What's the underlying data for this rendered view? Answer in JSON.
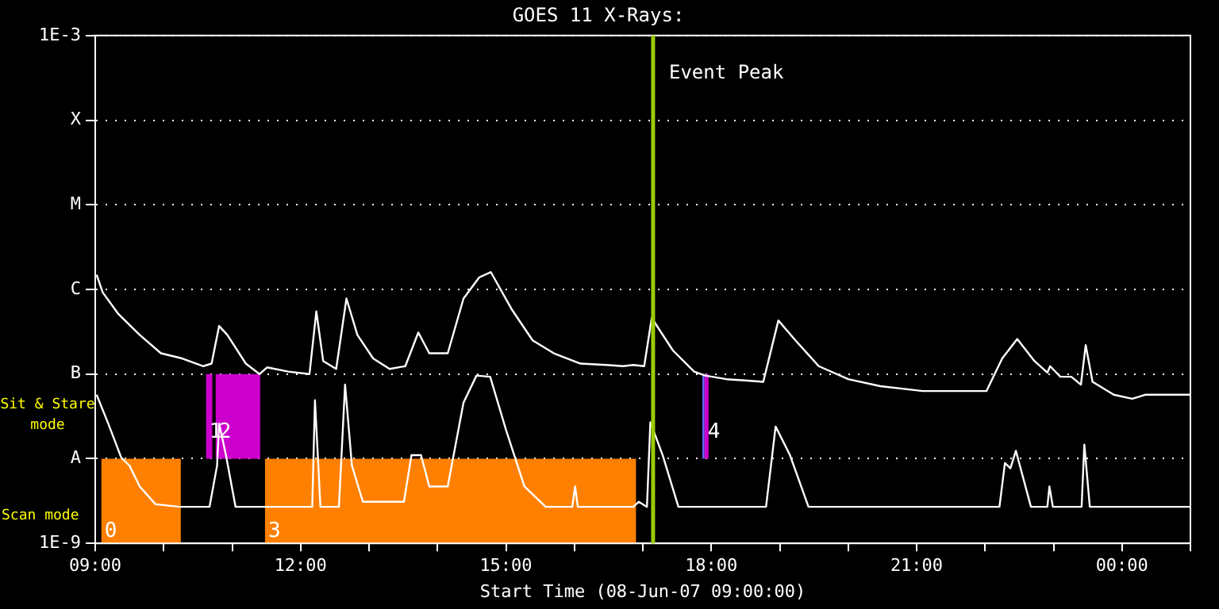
{
  "chart_data": {
    "type": "line",
    "title": "GOES 11 X-Rays:",
    "xlabel": "Start Time (08-Jun-07 09:00:00)",
    "xlim": [
      9,
      25
    ],
    "xticks": [
      {
        "value": 9,
        "label": "09:00"
      },
      {
        "value": 10,
        "label": null
      },
      {
        "value": 11,
        "label": null
      },
      {
        "value": 12,
        "label": "12:00"
      },
      {
        "value": 13,
        "label": null
      },
      {
        "value": 14,
        "label": null
      },
      {
        "value": 15,
        "label": "15:00"
      },
      {
        "value": 16,
        "label": null
      },
      {
        "value": 17,
        "label": null
      },
      {
        "value": 18,
        "label": "18:00"
      },
      {
        "value": 19,
        "label": null
      },
      {
        "value": 20,
        "label": null
      },
      {
        "value": 21,
        "label": "21:00"
      },
      {
        "value": 22,
        "label": null
      },
      {
        "value": 23,
        "label": null
      },
      {
        "value": 24,
        "label": "00:00"
      },
      {
        "value": 25,
        "label": null
      }
    ],
    "ylim": [
      1e-09,
      0.001
    ],
    "yticks": [
      {
        "value": 1e-09,
        "label": "1E-9"
      },
      {
        "value": 1e-08,
        "label": "A"
      },
      {
        "value": 1e-07,
        "label": "B"
      },
      {
        "value": 1e-06,
        "label": "C"
      },
      {
        "value": 1e-05,
        "label": "M"
      },
      {
        "value": 0.0001,
        "label": "X"
      },
      {
        "value": 0.001,
        "label": "1E-3"
      }
    ],
    "log": true,
    "grid": "y",
    "legend": false,
    "series": [
      {
        "color": "#ffffff",
        "x": [
          9.02,
          9.11,
          9.34,
          9.65,
          9.96,
          10.27,
          10.58,
          10.7,
          10.81,
          10.93,
          11.2,
          11.4,
          11.51,
          11.82,
          12.13,
          12.23,
          12.33,
          12.52,
          12.67,
          12.83,
          13.06,
          13.3,
          13.53,
          13.72,
          13.88,
          14.15,
          14.38,
          14.61,
          14.78,
          15.08,
          15.39,
          15.7,
          16.09,
          16.47,
          16.71,
          16.86,
          17.02,
          17.13,
          17.44,
          17.75,
          17.91,
          18.22,
          18.49,
          18.76,
          18.98,
          19.23,
          19.57,
          20.0,
          20.47,
          21.09,
          22.02,
          22.25,
          22.47,
          22.72,
          22.91,
          22.95,
          23.1,
          23.26,
          23.4,
          23.47,
          23.57,
          23.88,
          24.15,
          24.34,
          25.0
        ],
        "values": [
          1.49e-06,
          9.2e-07,
          5.1e-07,
          2.9e-07,
          1.76e-07,
          1.53e-07,
          1.24e-07,
          1.33e-07,
          3.7e-07,
          2.9e-07,
          1.33e-07,
          1e-07,
          1.2e-07,
          1.07e-07,
          1e-07,
          5.5e-07,
          1.43e-07,
          1.15e-07,
          7.8e-07,
          2.9e-07,
          1.53e-07,
          1.15e-07,
          1.24e-07,
          3.1e-07,
          1.76e-07,
          1.76e-07,
          7.8e-07,
          1.39e-06,
          1.6e-06,
          5.9e-07,
          2.5e-07,
          1.76e-07,
          1.33e-07,
          1.28e-07,
          1.24e-07,
          1.28e-07,
          1.24e-07,
          4.6e-07,
          1.9e-07,
          1.07e-07,
          9.6e-08,
          8.7e-08,
          8.4e-08,
          8.1e-08,
          4.3e-07,
          2.5e-07,
          1.24e-07,
          8.7e-08,
          7.2e-08,
          6.3e-08,
          6.3e-08,
          1.53e-07,
          2.6e-07,
          1.43e-07,
          1.04e-07,
          1.24e-07,
          9.3e-08,
          9.3e-08,
          7.5e-08,
          2.2e-07,
          8.1e-08,
          5.7e-08,
          5.1e-08,
          5.7e-08,
          5.7e-08
        ]
      },
      {
        "color": "#ffffff",
        "x": [
          9.02,
          9.19,
          9.38,
          9.5,
          9.65,
          9.88,
          10.23,
          10.67,
          10.78,
          10.81,
          10.91,
          11.05,
          12.17,
          12.21,
          12.29,
          12.56,
          12.65,
          12.75,
          12.91,
          13.51,
          13.62,
          13.76,
          13.88,
          14.15,
          14.38,
          14.57,
          14.77,
          15.0,
          15.27,
          15.58,
          15.97,
          16.01,
          16.05,
          16.86,
          16.94,
          17.06,
          17.11,
          17.29,
          17.52,
          18.8,
          18.94,
          19.15,
          19.42,
          22.21,
          22.29,
          22.37,
          22.45,
          22.67,
          22.91,
          22.94,
          22.99,
          23.41,
          23.45,
          23.53,
          25.0
        ],
        "values": [
          5.7e-08,
          2.6e-08,
          1.03e-08,
          8.3e-09,
          4.7e-09,
          2.9e-09,
          2.7e-09,
          2.7e-09,
          8.3e-09,
          2.6e-08,
          1.1e-08,
          2.7e-09,
          2.7e-09,
          4.9e-08,
          2.7e-09,
          2.7e-09,
          7.5e-08,
          8.3e-09,
          3.1e-09,
          3.1e-09,
          1.1e-08,
          1.1e-08,
          4.7e-09,
          4.7e-09,
          4.6e-08,
          9.6e-08,
          9.3e-08,
          2.2e-08,
          4.7e-09,
          2.7e-09,
          2.7e-09,
          4.7e-09,
          2.7e-09,
          2.7e-09,
          3.1e-09,
          2.7e-09,
          2.7e-08,
          1.1e-08,
          2.7e-09,
          2.7e-09,
          2.4e-08,
          1.1e-08,
          2.7e-09,
          2.7e-09,
          8.9e-09,
          7.7e-09,
          1.24e-08,
          2.7e-09,
          2.7e-09,
          4.7e-09,
          2.7e-09,
          2.7e-09,
          1.47e-08,
          2.7e-09,
          2.7e-09
        ]
      }
    ],
    "ref_lines": [
      {
        "axis": "x",
        "value": 17.15,
        "label": "Event Peak",
        "color": "#99cc00"
      }
    ],
    "bands": [
      {
        "axis": "x",
        "from": 9.09,
        "to": 10.25,
        "label": "0",
        "color": "#ff8000"
      },
      {
        "axis": "x",
        "from": 11.48,
        "to": 16.9,
        "label": "3",
        "color": "#ff8000"
      },
      {
        "axis": "x",
        "from": 10.62,
        "to": 10.71,
        "label": "1",
        "color": "#cc00cc"
      },
      {
        "axis": "x",
        "from": 10.76,
        "to": 11.41,
        "label": "2",
        "color": "#cc00cc"
      },
      {
        "axis": "x",
        "from": 17.9,
        "to": 17.96,
        "label": "4",
        "color": "#cc00cc"
      },
      {
        "axis": "x",
        "from": 17.87,
        "to": 17.9,
        "color": "#6666ff"
      }
    ],
    "annotations": [
      "Sit & Stare mode",
      "Scan mode"
    ]
  }
}
